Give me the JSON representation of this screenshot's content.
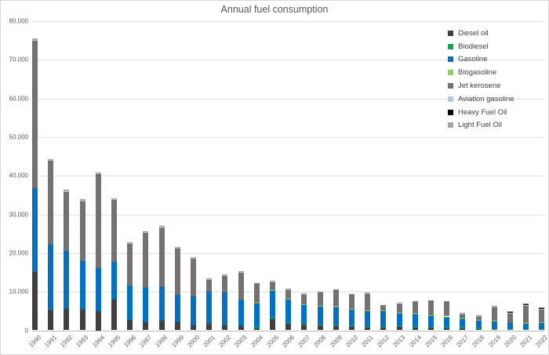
{
  "title": "Annual fuel consumption",
  "y_axis": {
    "tick_labels": [
      "0",
      "10.000",
      "20.000",
      "30.000",
      "40.000",
      "50.000",
      "60.000",
      "70.000",
      "80.000"
    ],
    "tick_values": [
      0,
      10000,
      20000,
      30000,
      40000,
      50000,
      60000,
      70000,
      80000
    ]
  },
  "legend": {
    "items": [
      {
        "label": "Diesel oil",
        "color": "#404040"
      },
      {
        "label": "Biodiesel",
        "color": "#00B050"
      },
      {
        "label": "Gasoline",
        "color": "#0070C0"
      },
      {
        "label": "Biogasoline",
        "color": "#92D050"
      },
      {
        "label": "Jet kerosene",
        "color": "#767171"
      },
      {
        "label": "Aviation gasoline",
        "color": "#B4C7E7"
      },
      {
        "label": "Heavy Fuel Oil",
        "color": "#000000"
      },
      {
        "label": "Light Fuel Oil",
        "color": "#A6A6A6"
      }
    ]
  },
  "chart_data": {
    "type": "bar",
    "stacked": true,
    "title": "Annual fuel consumption",
    "xlabel": "",
    "ylabel": "",
    "ylim": [
      0,
      80000
    ],
    "grid": true,
    "legend_position": "right-top",
    "categories": [
      "1990",
      "1991",
      "1992",
      "1993",
      "1994",
      "1995",
      "1996",
      "1997",
      "1998",
      "1999",
      "2000",
      "2001",
      "2002",
      "2003",
      "2004",
      "2005",
      "2006",
      "2007",
      "2008",
      "2009",
      "2010",
      "2011",
      "2012",
      "2013",
      "2014",
      "2015",
      "2016",
      "2017",
      "2018",
      "2019",
      "2020",
      "2021",
      "2022"
    ],
    "series": [
      {
        "name": "Diesel oil",
        "color": "#404040",
        "values": [
          15100,
          5100,
          5600,
          5300,
          5000,
          8000,
          2800,
          2200,
          2600,
          2100,
          1300,
          1700,
          1400,
          1100,
          600,
          2900,
          1700,
          1500,
          1300,
          1200,
          1000,
          800,
          850,
          900,
          800,
          750,
          700,
          550,
          500,
          350,
          300,
          300,
          250
        ]
      },
      {
        "name": "Biodiesel",
        "color": "#00B050",
        "values": [
          0,
          0,
          0,
          0,
          0,
          0,
          0,
          0,
          0,
          0,
          0,
          0,
          0,
          0,
          200,
          200,
          150,
          150,
          100,
          100,
          100,
          100,
          150,
          150,
          100,
          100,
          100,
          100,
          100,
          50,
          50,
          50,
          50
        ]
      },
      {
        "name": "Gasoline",
        "color": "#0070C0",
        "values": [
          21800,
          17200,
          14900,
          12700,
          11200,
          9800,
          8600,
          8800,
          8700,
          7200,
          7600,
          8300,
          8400,
          6800,
          6200,
          7200,
          6300,
          5000,
          4800,
          4700,
          4500,
          4300,
          4100,
          3500,
          3300,
          3100,
          2750,
          2300,
          2100,
          2000,
          1500,
          1550,
          1800
        ]
      },
      {
        "name": "Biogasoline",
        "color": "#92D050",
        "values": [
          0,
          0,
          0,
          0,
          0,
          0,
          0,
          0,
          0,
          0,
          0,
          0,
          0,
          0,
          100,
          100,
          100,
          100,
          100,
          100,
          50,
          50,
          100,
          100,
          150,
          100,
          100,
          100,
          50,
          100,
          0,
          100,
          100
        ]
      },
      {
        "name": "Jet kerosene",
        "color": "#767171",
        "values": [
          38200,
          21750,
          15450,
          15550,
          24350,
          16050,
          11100,
          14300,
          15400,
          12000,
          9850,
          3200,
          4500,
          7200,
          5050,
          2250,
          2400,
          2700,
          3650,
          4450,
          3700,
          4400,
          1300,
          2350,
          3250,
          3650,
          3950,
          1350,
          1050,
          3600,
          2750,
          4550,
          3350
        ]
      },
      {
        "name": "Aviation gasoline",
        "color": "#B4C7E7",
        "values": [
          50,
          50,
          50,
          50,
          50,
          50,
          50,
          50,
          50,
          50,
          50,
          50,
          50,
          50,
          50,
          50,
          50,
          50,
          50,
          50,
          50,
          50,
          50,
          50,
          50,
          50,
          50,
          50,
          50,
          50,
          50,
          50,
          50
        ]
      },
      {
        "name": "Heavy Fuel Oil",
        "color": "#000000",
        "values": [
          0,
          0,
          0,
          0,
          0,
          0,
          0,
          0,
          0,
          0,
          0,
          0,
          0,
          0,
          0,
          0,
          0,
          0,
          0,
          0,
          0,
          0,
          0,
          0,
          0,
          0,
          0,
          0,
          0,
          200,
          250,
          300,
          200
        ]
      },
      {
        "name": "Light Fuel Oil",
        "color": "#A6A6A6",
        "values": [
          450,
          300,
          300,
          300,
          300,
          300,
          250,
          250,
          250,
          250,
          200,
          150,
          150,
          150,
          100,
          100,
          100,
          100,
          100,
          100,
          100,
          100,
          50,
          50,
          50,
          50,
          50,
          50,
          50,
          50,
          100,
          100,
          100
        ]
      }
    ]
  }
}
